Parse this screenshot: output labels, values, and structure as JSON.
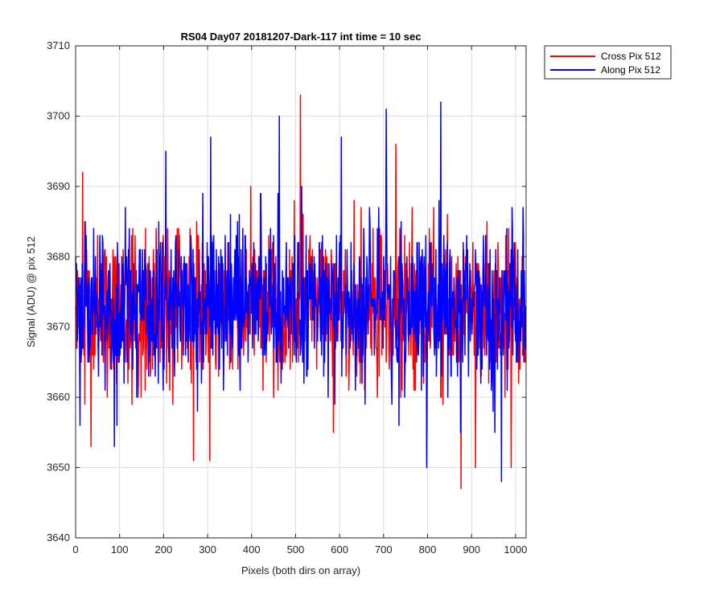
{
  "chart_data": {
    "type": "line",
    "title": "RS04 Day07 20181207-Dark-117 int time = 10 sec",
    "xlabel": "Pixels (both dirs on array)",
    "ylabel": "Signal (ADU) @ pix 512",
    "xlim": [
      0,
      1024
    ],
    "ylim": [
      3640,
      3710
    ],
    "xticks": [
      0,
      100,
      200,
      300,
      400,
      500,
      600,
      700,
      800,
      900,
      1000
    ],
    "yticks": [
      3640,
      3650,
      3660,
      3670,
      3680,
      3690,
      3700,
      3710
    ],
    "grid": true,
    "legend": {
      "position": "outside-top-right"
    },
    "series": [
      {
        "name": "Cross Pix 512",
        "color": "#ff0000",
        "noise_model": {
          "n_points": 1024,
          "mean": 3672.5,
          "std": 5.6,
          "min": 3647,
          "max": 3703,
          "seed": 1207
        },
        "annotated_extremes": [
          {
            "x": 16,
            "y": 3692
          },
          {
            "x": 35,
            "y": 3653
          },
          {
            "x": 268,
            "y": 3651
          },
          {
            "x": 305,
            "y": 3651
          },
          {
            "x": 511,
            "y": 3703
          },
          {
            "x": 728,
            "y": 3696
          },
          {
            "x": 876,
            "y": 3647
          },
          {
            "x": 909,
            "y": 3650
          },
          {
            "x": 990,
            "y": 3650
          }
        ]
      },
      {
        "name": "Along Pix 512",
        "color": "#0000ff",
        "noise_model": {
          "n_points": 1024,
          "mean": 3673.0,
          "std": 5.4,
          "min": 3648,
          "max": 3702,
          "seed": 117
        },
        "annotated_extremes": [
          {
            "x": 10,
            "y": 3656
          },
          {
            "x": 88,
            "y": 3653
          },
          {
            "x": 205,
            "y": 3695
          },
          {
            "x": 307,
            "y": 3697
          },
          {
            "x": 463,
            "y": 3700
          },
          {
            "x": 604,
            "y": 3697
          },
          {
            "x": 706,
            "y": 3701
          },
          {
            "x": 798,
            "y": 3650
          },
          {
            "x": 830,
            "y": 3702
          },
          {
            "x": 968,
            "y": 3648
          }
        ]
      }
    ]
  }
}
